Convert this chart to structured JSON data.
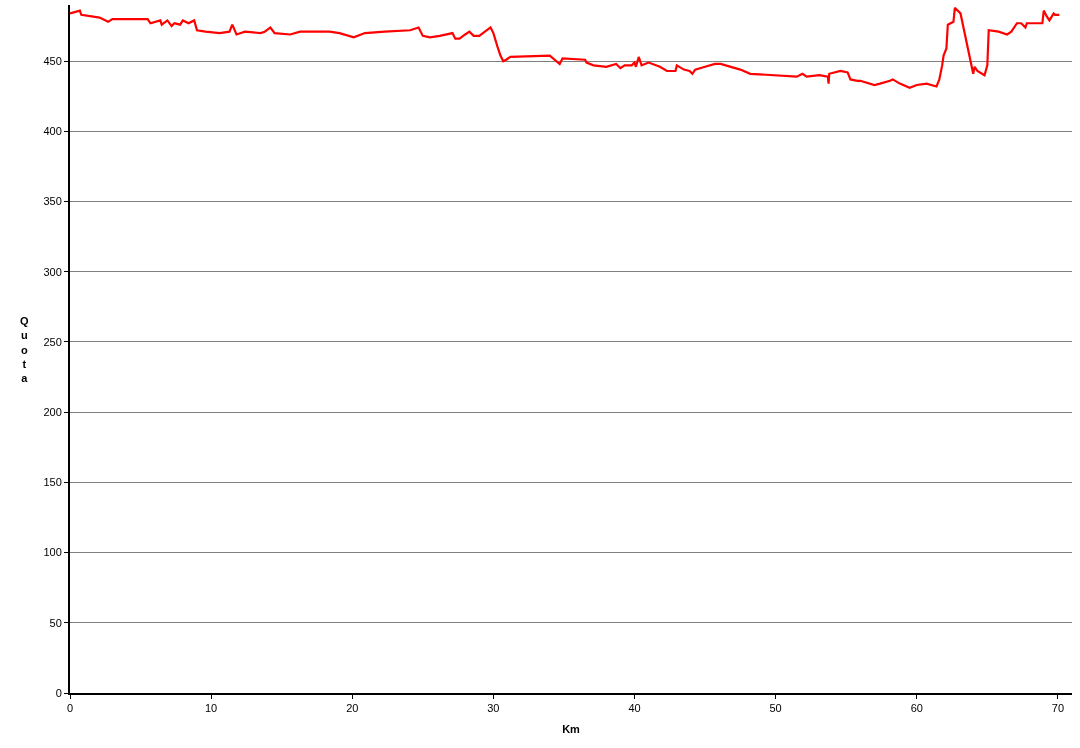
{
  "chart_data": {
    "type": "line",
    "xlabel": "Km",
    "ylabel": "Quota",
    "x": [
      0,
      0.7,
      0.8,
      2.1,
      2.7,
      3.0,
      5.5,
      5.7,
      6.4,
      6.5,
      6.9,
      7.2,
      7.4,
      7.8,
      8.0,
      8.4,
      8.8,
      9.0,
      9.6,
      10.6,
      11.3,
      11.5,
      11.8,
      12.4,
      13.5,
      13.8,
      14.2,
      14.5,
      15.6,
      16.3,
      18.4,
      19.1,
      20.1,
      20.9,
      22.3,
      24.1,
      24.7,
      25.0,
      25.5,
      26.2,
      27.1,
      27.3,
      27.6,
      28.0,
      28.3,
      28.6,
      29.0,
      29.4,
      29.8,
      30.0,
      30.3,
      30.5,
      30.7,
      30.9,
      31.2,
      34.0,
      34.7,
      34.9,
      36.5,
      36.6,
      37.1,
      38.0,
      38.7,
      39.0,
      39.3,
      39.8,
      40.0,
      40.1,
      40.3,
      40.5,
      41.0,
      41.8,
      42.3,
      42.9,
      43.0,
      43.5,
      43.9,
      44.1,
      44.3,
      45.0,
      45.7,
      46.1,
      47.5,
      48.2,
      51.5,
      51.9,
      52.2,
      53.1,
      53.7,
      53.75,
      53.8,
      54.6,
      55.1,
      55.3,
      55.8,
      56.0,
      57.0,
      57.4,
      58.1,
      58.3,
      58.8,
      59.5,
      60.0,
      60.7,
      61.4,
      61.6,
      61.8,
      61.9,
      62.1,
      62.2,
      62.6,
      62.7,
      63.1,
      64.0,
      64.1,
      64.3,
      64.8,
      65.0,
      65.1,
      65.8,
      66.4,
      66.7,
      67.1,
      67.4,
      67.7,
      67.8,
      68.9,
      69.0,
      69.2,
      69.4,
      69.7,
      69.8,
      70.1
    ],
    "series": [
      {
        "color": "#ff0000",
        "values": [
          484,
          486,
          483,
          481,
          478,
          480,
          480,
          477,
          479,
          476,
          479,
          475,
          477,
          476,
          479,
          477,
          479,
          472,
          471,
          470,
          471,
          476,
          469,
          471,
          470,
          471,
          474,
          470,
          469,
          471,
          471,
          470,
          467,
          470,
          471,
          472,
          474,
          468,
          467,
          468,
          470,
          466,
          466,
          469,
          471,
          468,
          468,
          471,
          474,
          470,
          460,
          454,
          450,
          451,
          453,
          454,
          448,
          452,
          451,
          449,
          447,
          446,
          448,
          445,
          447,
          447,
          449,
          446,
          453,
          447,
          449,
          446,
          443,
          443,
          447,
          444,
          443,
          441,
          444,
          446,
          448,
          448,
          444,
          441,
          439,
          441,
          439,
          440,
          439,
          434,
          441,
          443,
          442,
          437,
          436,
          436,
          433,
          434,
          436,
          437,
          434,
          431,
          433,
          434,
          432,
          437,
          447,
          454,
          459,
          476,
          478,
          488,
          484,
          441,
          446,
          443,
          440,
          447,
          472,
          471,
          469,
          471,
          477,
          477,
          474,
          477,
          477,
          486,
          482,
          479,
          484,
          483,
          483
        ]
      }
    ],
    "xlim": [
      0,
      71
    ],
    "ylim": [
      0,
      490
    ],
    "xticks": [
      0,
      10,
      20,
      30,
      40,
      50,
      60,
      70
    ],
    "yticks": [
      0,
      50,
      100,
      150,
      200,
      250,
      300,
      350,
      400,
      450
    ],
    "grid": "y",
    "marker": "none",
    "line_style": "solid"
  }
}
